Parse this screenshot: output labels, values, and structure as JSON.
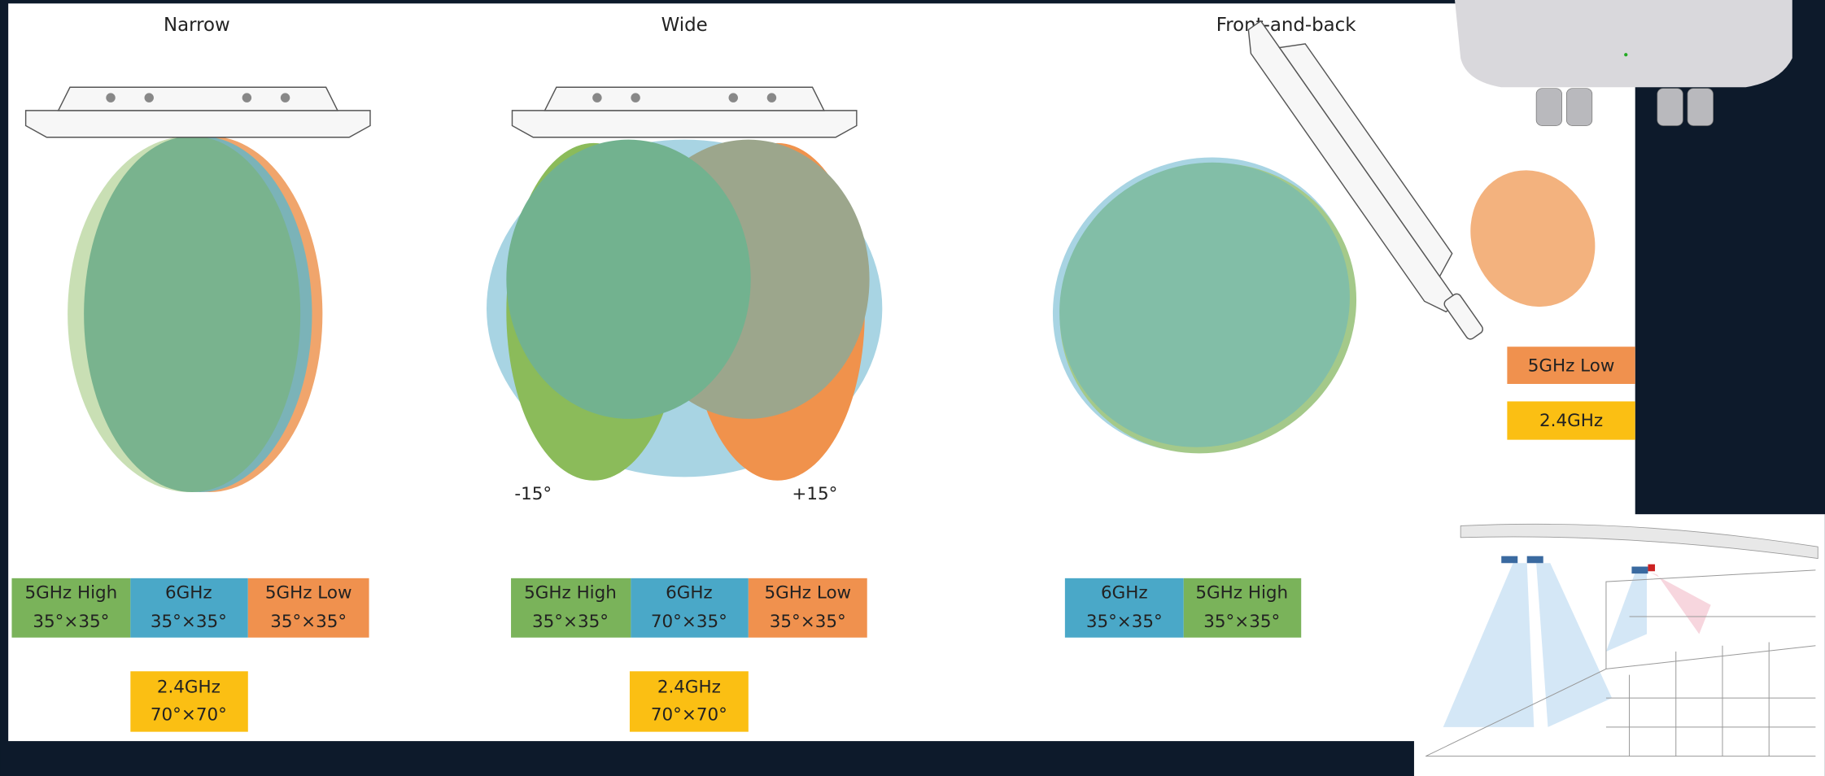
{
  "panels": [
    {
      "title": "Narrow",
      "labels": [
        {
          "band": "5GHz High",
          "angle": "35°×35°"
        },
        {
          "band": "6GHz",
          "angle": "35°×35°"
        },
        {
          "band": "5GHz Low",
          "angle": "35°×35°"
        }
      ],
      "extra": {
        "band": "2.4GHz",
        "angle": "70°×70°"
      }
    },
    {
      "title": "Wide",
      "tilt_labels": [
        "-15°",
        "+15°"
      ],
      "labels": [
        {
          "band": "5GHz High",
          "angle": "35°×35°"
        },
        {
          "band": "6GHz",
          "angle": "70°×35°"
        },
        {
          "band": "5GHz Low",
          "angle": "35°×35°"
        }
      ],
      "extra": {
        "band": "2.4GHz",
        "angle": "70°×70°"
      }
    },
    {
      "title": "Front-and-back",
      "labels": [
        {
          "band": "6GHz",
          "angle": "35°×35°"
        },
        {
          "band": "5GHz High",
          "angle": "35°×35°"
        }
      ],
      "side_labels": [
        "5GHz Low",
        "2.4GHz"
      ]
    }
  ]
}
